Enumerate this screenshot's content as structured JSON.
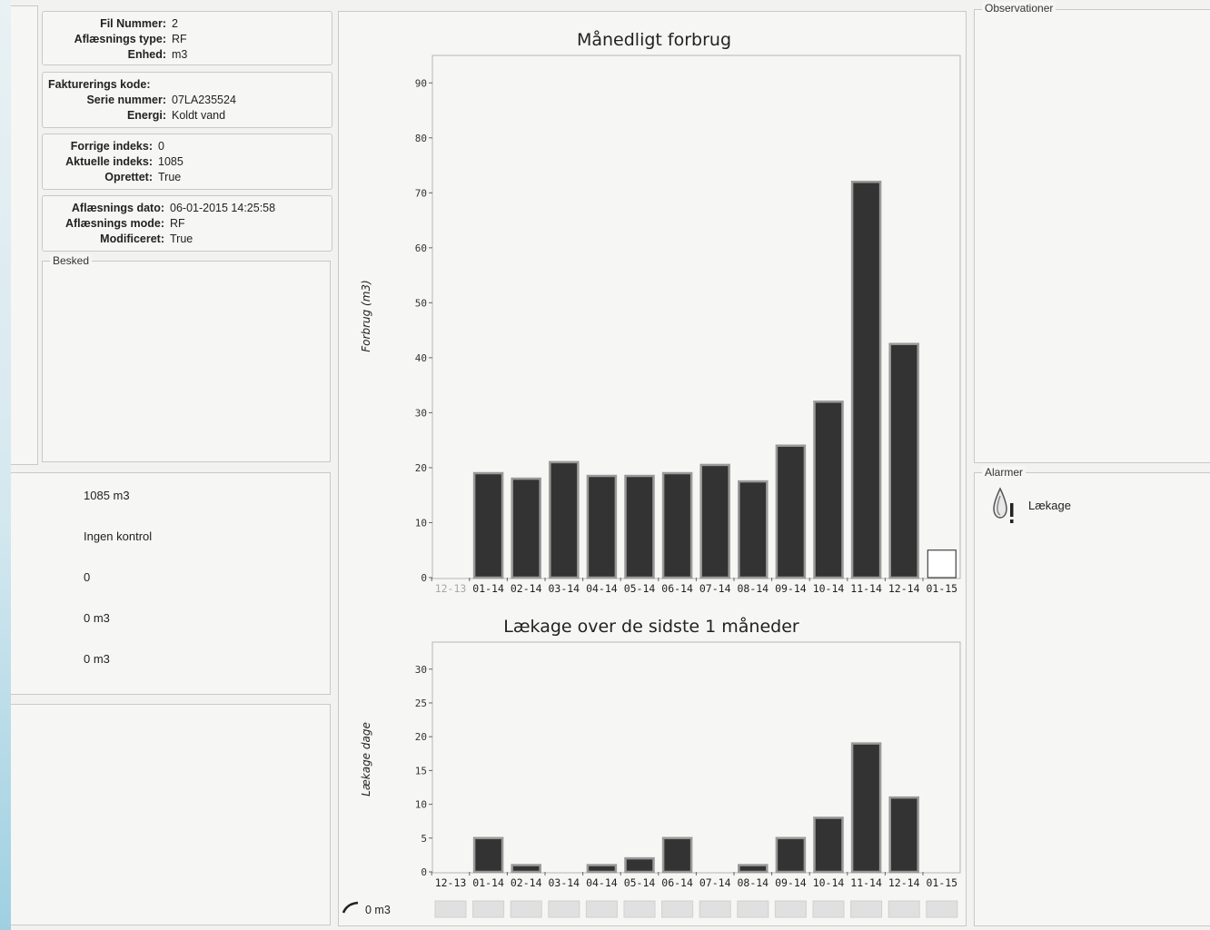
{
  "file_info": {
    "fil_nummer_label": "Fil Nummer:",
    "fil_nummer": "2",
    "aflaesnings_type_label": "Aflæsnings type:",
    "aflaesnings_type": "RF",
    "enhed_label": "Enhed:",
    "enhed": "m3"
  },
  "meter_info": {
    "fakturerings_kode_label": "Fakturerings kode:",
    "fakturerings_kode": "",
    "serie_nummer_label": "Serie nummer:",
    "serie_nummer": "07LA235524",
    "energi_label": "Energi:",
    "energi": "Koldt vand"
  },
  "index_info": {
    "forrige_label": "Forrige indeks:",
    "forrige": "0",
    "aktuelle_label": "Aktuelle indeks:",
    "aktuelle": "1085",
    "oprettet_label": "Oprettet:",
    "oprettet": "True"
  },
  "reading_info": {
    "dato_label": "Aflæsnings dato:",
    "dato": "06-01-2015 14:25:58",
    "mode_label": "Aflæsnings mode:",
    "mode": "RF",
    "modificeret_label": "Modificeret:",
    "modificeret": "True"
  },
  "besked": {
    "title": "Besked"
  },
  "summary": {
    "total": "1085 m3",
    "kontrol": "Ingen kontrol",
    "count": "0",
    "value_a": "0 m3",
    "value_b": "0 m3"
  },
  "observationer": {
    "title": "Observationer"
  },
  "alarmer": {
    "title": "Alarmer",
    "items": [
      {
        "label": "Lækage",
        "icon": "water-drop-alert-icon"
      }
    ]
  },
  "bottom_indicator": {
    "label": "0 m3",
    "icon": "gauge-arc-icon"
  },
  "colors": {
    "bar": "#333333",
    "bar_outline": "#999999",
    "open_bar": "#ffffff"
  },
  "chart_data": [
    {
      "type": "bar",
      "title": "Månedligt forbrug",
      "xlabel": "",
      "ylabel": "Forbrug (m3)",
      "categories": [
        "12-13",
        "01-14",
        "02-14",
        "03-14",
        "04-14",
        "05-14",
        "06-14",
        "07-14",
        "08-14",
        "09-14",
        "10-14",
        "11-14",
        "12-14",
        "01-15"
      ],
      "values": [
        0,
        19,
        18,
        21,
        18.5,
        18.5,
        19,
        20.5,
        17.5,
        24,
        32,
        72,
        42.5,
        5
      ],
      "open_last": true,
      "ylim": [
        0,
        95
      ],
      "yticks": [
        0,
        10,
        20,
        30,
        40,
        50,
        60,
        70,
        80,
        90
      ],
      "grid": false
    },
    {
      "type": "bar",
      "title": "Lækage over de sidste 1 måneder",
      "xlabel": "",
      "ylabel": "Lækage dage",
      "categories": [
        "12-13",
        "01-14",
        "02-14",
        "03-14",
        "04-14",
        "05-14",
        "06-14",
        "07-14",
        "08-14",
        "09-14",
        "10-14",
        "11-14",
        "12-14",
        "01-15"
      ],
      "values": [
        0,
        5,
        1,
        0,
        1,
        2,
        5,
        0,
        1,
        5,
        8,
        19,
        11,
        0
      ],
      "ylim": [
        0,
        34
      ],
      "yticks": [
        0,
        5,
        10,
        15,
        20,
        25,
        30
      ],
      "grid": false
    }
  ]
}
